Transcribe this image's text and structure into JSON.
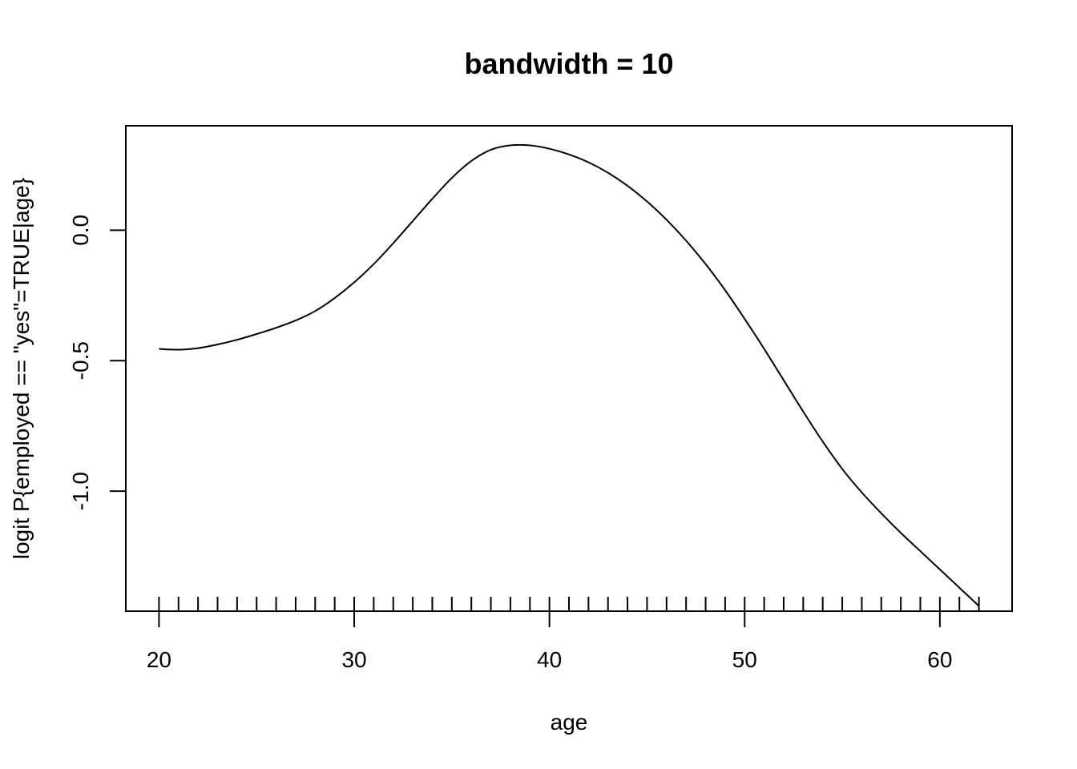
{
  "chart_data": {
    "type": "line",
    "title": "bandwidth = 10",
    "xlabel": "age",
    "ylabel": "logit P{employed == \"yes\"=TRUE|age}",
    "xlim": [
      18.3,
      63.7
    ],
    "ylim": [
      -1.46,
      0.4
    ],
    "x_ticks": [
      20,
      30,
      40,
      50,
      60
    ],
    "x_tick_labels": [
      "20",
      "30",
      "40",
      "50",
      "60"
    ],
    "y_ticks": [
      0.0,
      -0.5,
      -1.0
    ],
    "y_tick_labels": [
      "0.0",
      "-0.5",
      "-1.0"
    ],
    "grid": false,
    "legend": "none",
    "rug_x": [
      20,
      21,
      22,
      23,
      24,
      25,
      26,
      27,
      28,
      29,
      30,
      31,
      32,
      33,
      34,
      35,
      36,
      37,
      38,
      39,
      40,
      41,
      42,
      43,
      44,
      45,
      46,
      47,
      48,
      49,
      50,
      51,
      52,
      53,
      54,
      55,
      56,
      57,
      58,
      59,
      60,
      61,
      62
    ],
    "series": [
      {
        "color": "#000000",
        "x": [
          20,
          21,
          22,
          23,
          24,
          25,
          26,
          27,
          28,
          29,
          30,
          31,
          32,
          33,
          34,
          35,
          36,
          37,
          38,
          39,
          40,
          41,
          42,
          43,
          44,
          45,
          46,
          47,
          48,
          49,
          50,
          51,
          52,
          53,
          54,
          55,
          56,
          57,
          58,
          59,
          60,
          61,
          62
        ],
        "y": [
          -0.455,
          -0.458,
          -0.452,
          -0.438,
          -0.42,
          -0.398,
          -0.374,
          -0.346,
          -0.31,
          -0.26,
          -0.2,
          -0.13,
          -0.05,
          0.035,
          0.12,
          0.2,
          0.265,
          0.308,
          0.325,
          0.325,
          0.312,
          0.29,
          0.26,
          0.22,
          0.17,
          0.11,
          0.04,
          -0.04,
          -0.13,
          -0.23,
          -0.34,
          -0.455,
          -0.575,
          -0.695,
          -0.81,
          -0.915,
          -1.005,
          -1.085,
          -1.16,
          -1.23,
          -1.3,
          -1.37,
          -1.44
        ]
      }
    ]
  }
}
